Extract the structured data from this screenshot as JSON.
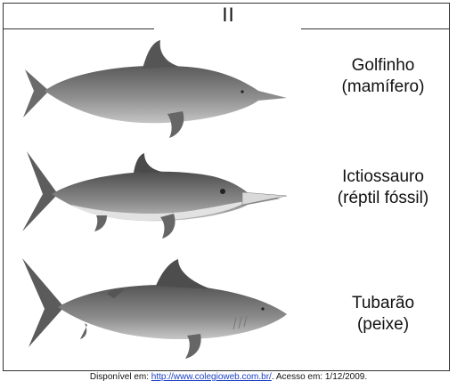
{
  "panel": {
    "label": "II"
  },
  "animals": [
    {
      "name": "Golfinho",
      "class": "(mamífero)"
    },
    {
      "name": "Ictiossauro",
      "class": "(réptil fóssil)"
    },
    {
      "name": "Tubarão",
      "class": "(peixe)"
    }
  ],
  "footer": {
    "prefix": "Disponível em: ",
    "link": "http://www.colegioweb.com.br/",
    "suffix": ". Acesso em: 1/12/2009."
  }
}
